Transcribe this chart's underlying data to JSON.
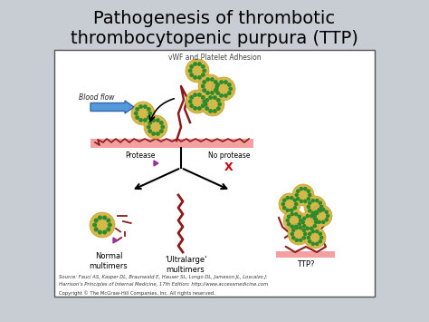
{
  "title_line1": "Pathogenesis of thrombotic",
  "title_line2": "thrombocytopenic purpura (TTP)",
  "title_fontsize": 14,
  "title_color": "#000000",
  "bg_color": "#c8cdd4",
  "inner_bg": "#ffffff",
  "inner_border": "#555555",
  "subtitle": "vWF and Platelet Adhesion",
  "blood_flow_label": "Blood flow",
  "protease_label": "Protease",
  "no_protease_label": "No protease",
  "label_normal": "Normal\nmultimers",
  "label_ultralarge": "'Ultralarge'\nmultimers",
  "label_ttp": "TTP?",
  "source_line1": "Source: Fauci AS, Kasper DL, Braunwald E, Hauser SL, Longo DL, Jameson JL, Loscalzo J:",
  "source_line2": "Harrison's Principles of Internal Medicine, 17th Edition: http://www.accessmedicine.com",
  "copyright_text": "Copyright © The McGraw-Hill Companies, Inc. All rights reserved.",
  "platelet_color": "#d4b84a",
  "platelet_border": "#c8a030",
  "platelet_dot_color": "#2d8a2d",
  "vwf_color": "#8b1a1a",
  "endothelium_color": "#f4a0a0",
  "arrow_color": "#5599dd",
  "branch_color": "#000000",
  "x_color": "#cc0000",
  "purple_arrow_color": "#993399"
}
